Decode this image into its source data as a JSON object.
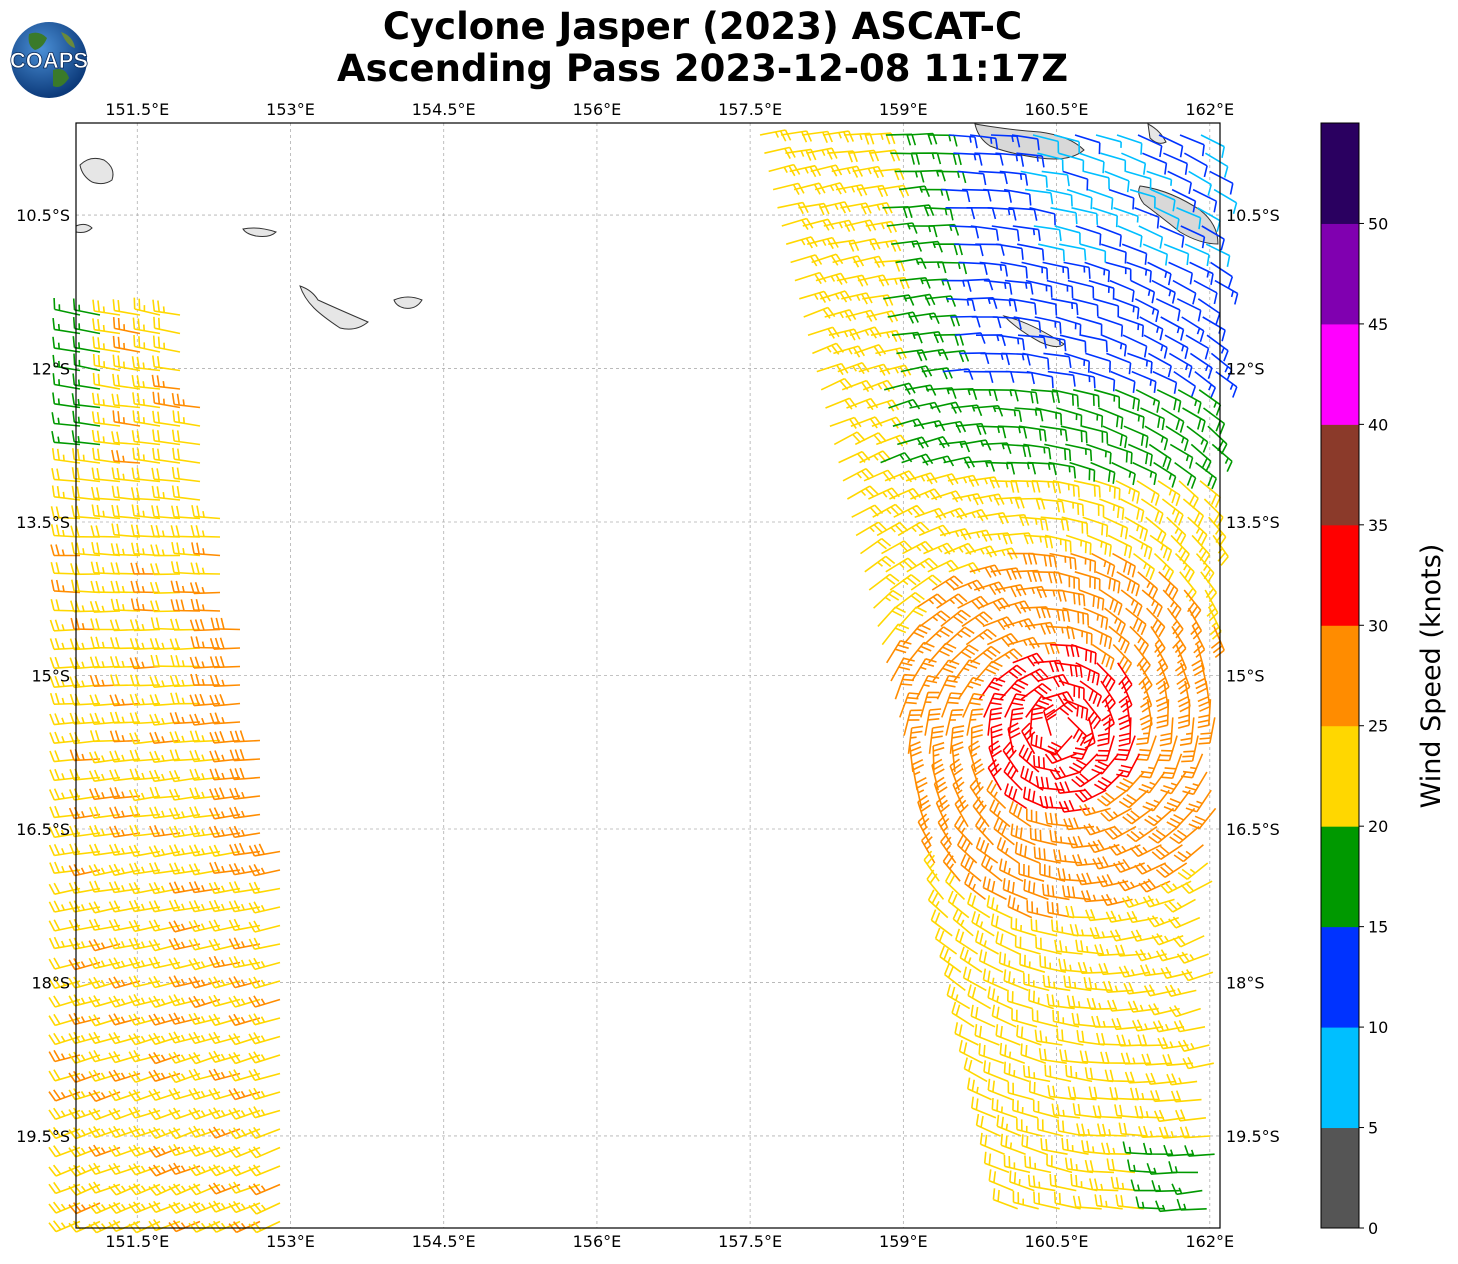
{
  "header": {
    "title_line1": "Cyclone Jasper (2023) ASCAT-C",
    "title_line2": "Ascending Pass 2023-12-08 11:17Z"
  },
  "logo": {
    "text": "COAPS"
  },
  "map": {
    "lon_ticks": [
      "151.5°E",
      "153°E",
      "154.5°E",
      "156°E",
      "157.5°E",
      "159°E",
      "160.5°E",
      "162°E"
    ],
    "lat_ticks": [
      "10.5°S",
      "12°S",
      "13.5°S",
      "15°S",
      "16.5°S",
      "18°S",
      "19.5°S"
    ],
    "extent": {
      "lon_min": 150.9,
      "lon_max": 162.1,
      "lat_max": -9.6,
      "lat_min": -20.4
    },
    "grid": true
  },
  "colorbar": {
    "label": "Wind Speed (knots)",
    "ticks": [
      "0",
      "5",
      "10",
      "15",
      "20",
      "25",
      "30",
      "35",
      "40",
      "45",
      "50"
    ],
    "colors": [
      "#555555",
      "#00bfff",
      "#0033ff",
      "#009900",
      "#ffd700",
      "#ff8c00",
      "#ff0000",
      "#8b3a2a",
      "#ff00ff",
      "#8000b0",
      "#2a0060"
    ]
  }
}
